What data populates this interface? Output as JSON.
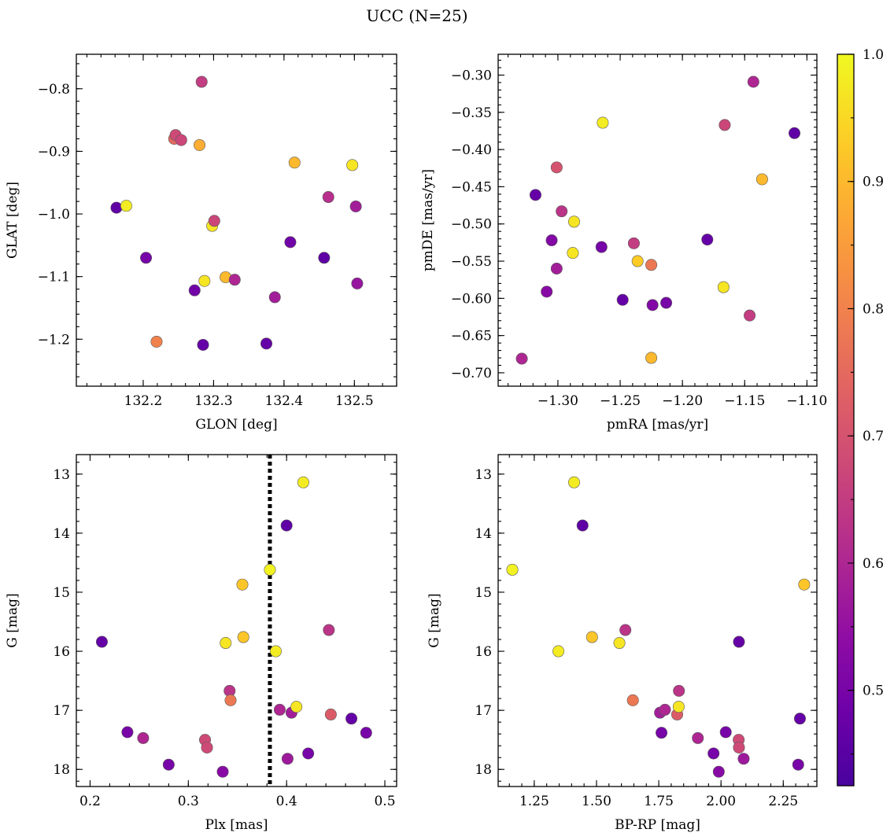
{
  "title": "UCC (N=25)",
  "colorbar": {
    "colormap": "plasma",
    "range": [
      0.425,
      1.0
    ],
    "ticks": [
      "0.5",
      "0.6",
      "0.7",
      "0.8",
      "0.9",
      "1.0"
    ]
  },
  "chart_data": [
    {
      "type": "scatter",
      "xlabel": "GLON [deg]",
      "ylabel": "GLAT [deg]",
      "xlim": [
        132.105,
        132.56
      ],
      "ylim": [
        -1.275,
        -0.745
      ],
      "inverted_y": false,
      "xticks": [
        "132.2",
        "132.3",
        "132.4",
        "132.5"
      ],
      "yticks": [
        "-0.8",
        "-0.9",
        "-1.0",
        "-1.1",
        "-1.2"
      ],
      "points": [
        {
          "x": 132.162,
          "y": -0.99,
          "c": 0.46
        },
        {
          "x": 132.176,
          "y": -0.987,
          "c": 0.98
        },
        {
          "x": 132.204,
          "y": -1.07,
          "c": 0.5
        },
        {
          "x": 132.219,
          "y": -1.204,
          "c": 0.8
        },
        {
          "x": 132.244,
          "y": -0.88,
          "c": 0.75
        },
        {
          "x": 132.246,
          "y": -0.874,
          "c": 0.68
        },
        {
          "x": 132.254,
          "y": -0.882,
          "c": 0.67
        },
        {
          "x": 132.273,
          "y": -1.122,
          "c": 0.49
        },
        {
          "x": 132.28,
          "y": -0.89,
          "c": 0.88
        },
        {
          "x": 132.283,
          "y": -0.789,
          "c": 0.65
        },
        {
          "x": 132.285,
          "y": -1.209,
          "c": 0.47
        },
        {
          "x": 132.287,
          "y": -1.107,
          "c": 0.97
        },
        {
          "x": 132.298,
          "y": -1.019,
          "c": 0.97
        },
        {
          "x": 132.301,
          "y": -1.011,
          "c": 0.67
        },
        {
          "x": 132.317,
          "y": -1.101,
          "c": 0.9
        },
        {
          "x": 132.33,
          "y": -1.105,
          "c": 0.6
        },
        {
          "x": 132.375,
          "y": -1.207,
          "c": 0.47
        },
        {
          "x": 132.387,
          "y": -1.133,
          "c": 0.58
        },
        {
          "x": 132.409,
          "y": -1.045,
          "c": 0.49
        },
        {
          "x": 132.415,
          "y": -0.918,
          "c": 0.9
        },
        {
          "x": 132.457,
          "y": -1.07,
          "c": 0.46
        },
        {
          "x": 132.463,
          "y": -0.973,
          "c": 0.62
        },
        {
          "x": 132.497,
          "y": -0.922,
          "c": 0.97
        },
        {
          "x": 132.502,
          "y": -0.988,
          "c": 0.58
        },
        {
          "x": 132.504,
          "y": -1.111,
          "c": 0.56
        }
      ]
    },
    {
      "type": "scatter",
      "xlabel": "pmRA [mas/yr]",
      "ylabel": "pmDE [mas/yr]",
      "xlim": [
        -1.348,
        -1.092
      ],
      "ylim": [
        -0.718,
        -0.272
      ],
      "inverted_y": false,
      "xticks": [
        "-1.30",
        "-1.25",
        "-1.20",
        "-1.15",
        "-1.10"
      ],
      "yticks": [
        "-0.30",
        "-0.35",
        "-0.40",
        "-0.45",
        "-0.50",
        "-0.55",
        "-0.60",
        "-0.65",
        "-0.70"
      ],
      "points": [
        {
          "x": -1.329,
          "y": -0.681,
          "c": 0.6
        },
        {
          "x": -1.318,
          "y": -0.461,
          "c": 0.47
        },
        {
          "x": -1.309,
          "y": -0.591,
          "c": 0.53
        },
        {
          "x": -1.305,
          "y": -0.522,
          "c": 0.52
        },
        {
          "x": -1.301,
          "y": -0.424,
          "c": 0.7
        },
        {
          "x": -1.301,
          "y": -0.56,
          "c": 0.58
        },
        {
          "x": -1.297,
          "y": -0.483,
          "c": 0.63
        },
        {
          "x": -1.288,
          "y": -0.539,
          "c": 0.97
        },
        {
          "x": -1.287,
          "y": -0.497,
          "c": 0.97
        },
        {
          "x": -1.265,
          "y": -0.531,
          "c": 0.5
        },
        {
          "x": -1.264,
          "y": -0.364,
          "c": 0.98
        },
        {
          "x": -1.248,
          "y": -0.602,
          "c": 0.47
        },
        {
          "x": -1.239,
          "y": -0.526,
          "c": 0.65
        },
        {
          "x": -1.236,
          "y": -0.55,
          "c": 0.93
        },
        {
          "x": -1.225,
          "y": -0.68,
          "c": 0.9
        },
        {
          "x": -1.225,
          "y": -0.555,
          "c": 0.78
        },
        {
          "x": -1.224,
          "y": -0.609,
          "c": 0.52
        },
        {
          "x": -1.213,
          "y": -0.606,
          "c": 0.5
        },
        {
          "x": -1.18,
          "y": -0.521,
          "c": 0.47
        },
        {
          "x": -1.166,
          "y": -0.367,
          "c": 0.67
        },
        {
          "x": -1.167,
          "y": -0.585,
          "c": 0.97
        },
        {
          "x": -1.146,
          "y": -0.623,
          "c": 0.65
        },
        {
          "x": -1.143,
          "y": -0.309,
          "c": 0.6
        },
        {
          "x": -1.136,
          "y": -0.44,
          "c": 0.9
        },
        {
          "x": -1.11,
          "y": -0.378,
          "c": 0.46
        }
      ]
    },
    {
      "type": "scatter",
      "xlabel": "Plx [mas]",
      "ylabel": "G [mag]",
      "xlim": [
        0.186,
        0.512
      ],
      "ylim": [
        18.29,
        12.67
      ],
      "inverted_y": true,
      "xticks": [
        "0.2",
        "0.3",
        "0.4",
        "0.5"
      ],
      "yticks": [
        "13",
        "14",
        "15",
        "16",
        "17",
        "18"
      ],
      "vline": {
        "x": 0.383,
        "style": "dotted"
      },
      "points": [
        {
          "x": 0.212,
          "y": 15.84,
          "c": 0.47
        },
        {
          "x": 0.238,
          "y": 17.37,
          "c": 0.5
        },
        {
          "x": 0.254,
          "y": 17.47,
          "c": 0.6
        },
        {
          "x": 0.28,
          "y": 17.92,
          "c": 0.5
        },
        {
          "x": 0.317,
          "y": 17.5,
          "c": 0.68
        },
        {
          "x": 0.319,
          "y": 17.63,
          "c": 0.68
        },
        {
          "x": 0.335,
          "y": 18.04,
          "c": 0.53
        },
        {
          "x": 0.338,
          "y": 15.86,
          "c": 0.97
        },
        {
          "x": 0.342,
          "y": 16.67,
          "c": 0.63
        },
        {
          "x": 0.343,
          "y": 16.83,
          "c": 0.78
        },
        {
          "x": 0.355,
          "y": 14.87,
          "c": 0.92
        },
        {
          "x": 0.356,
          "y": 15.76,
          "c": 0.92
        },
        {
          "x": 0.383,
          "y": 14.62,
          "c": 0.99
        },
        {
          "x": 0.389,
          "y": 16.0,
          "c": 0.98
        },
        {
          "x": 0.393,
          "y": 16.99,
          "c": 0.6
        },
        {
          "x": 0.4,
          "y": 13.87,
          "c": 0.46
        },
        {
          "x": 0.401,
          "y": 17.82,
          "c": 0.57
        },
        {
          "x": 0.405,
          "y": 17.04,
          "c": 0.58
        },
        {
          "x": 0.41,
          "y": 16.94,
          "c": 0.97
        },
        {
          "x": 0.417,
          "y": 13.14,
          "c": 0.98
        },
        {
          "x": 0.422,
          "y": 17.73,
          "c": 0.5
        },
        {
          "x": 0.443,
          "y": 15.64,
          "c": 0.63
        },
        {
          "x": 0.445,
          "y": 17.07,
          "c": 0.72
        },
        {
          "x": 0.466,
          "y": 17.14,
          "c": 0.47
        },
        {
          "x": 0.481,
          "y": 17.38,
          "c": 0.5
        }
      ]
    },
    {
      "type": "scatter",
      "xlabel": "BP-RP [mag]",
      "ylabel": "G [mag]",
      "xlim": [
        1.105,
        2.385
      ],
      "ylim": [
        18.29,
        12.67
      ],
      "inverted_y": true,
      "xticks": [
        "1.25",
        "1.50",
        "1.75",
        "2.00",
        "2.25"
      ],
      "yticks": [
        "13",
        "14",
        "15",
        "16",
        "17",
        "18"
      ],
      "points": [
        {
          "x": 1.162,
          "y": 14.62,
          "c": 0.99
        },
        {
          "x": 1.347,
          "y": 16.0,
          "c": 0.98
        },
        {
          "x": 1.41,
          "y": 13.14,
          "c": 0.98
        },
        {
          "x": 1.444,
          "y": 13.87,
          "c": 0.46
        },
        {
          "x": 1.482,
          "y": 15.76,
          "c": 0.92
        },
        {
          "x": 1.592,
          "y": 15.86,
          "c": 0.97
        },
        {
          "x": 1.616,
          "y": 15.64,
          "c": 0.63
        },
        {
          "x": 1.646,
          "y": 16.83,
          "c": 0.78
        },
        {
          "x": 1.755,
          "y": 17.04,
          "c": 0.58
        },
        {
          "x": 1.761,
          "y": 17.38,
          "c": 0.5
        },
        {
          "x": 1.775,
          "y": 16.99,
          "c": 0.6
        },
        {
          "x": 1.824,
          "y": 17.07,
          "c": 0.72
        },
        {
          "x": 1.83,
          "y": 16.94,
          "c": 0.97
        },
        {
          "x": 1.831,
          "y": 16.67,
          "c": 0.63
        },
        {
          "x": 1.907,
          "y": 17.47,
          "c": 0.6
        },
        {
          "x": 1.97,
          "y": 17.73,
          "c": 0.5
        },
        {
          "x": 1.991,
          "y": 18.04,
          "c": 0.53
        },
        {
          "x": 2.019,
          "y": 17.37,
          "c": 0.5
        },
        {
          "x": 2.071,
          "y": 17.5,
          "c": 0.68
        },
        {
          "x": 2.072,
          "y": 17.63,
          "c": 0.68
        },
        {
          "x": 2.072,
          "y": 15.84,
          "c": 0.47
        },
        {
          "x": 2.091,
          "y": 17.82,
          "c": 0.57
        },
        {
          "x": 2.31,
          "y": 17.92,
          "c": 0.5
        },
        {
          "x": 2.317,
          "y": 17.14,
          "c": 0.47
        },
        {
          "x": 2.334,
          "y": 14.87,
          "c": 0.92
        }
      ]
    }
  ]
}
